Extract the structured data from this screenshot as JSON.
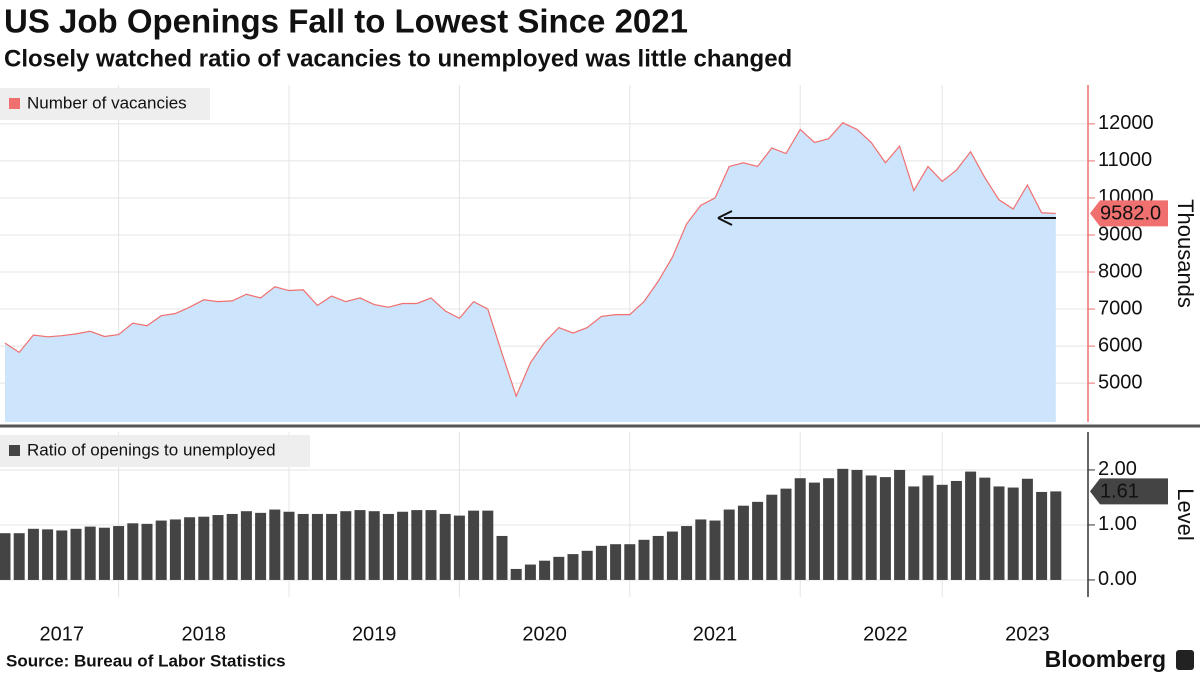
{
  "chart_data": [
    {
      "type": "area",
      "title": "US Job Openings Fall to Lowest Since 2021",
      "subtitle": "Closely watched ratio of vacancies to unemployed was little changed",
      "ylabel": "Thousands",
      "ylim": [
        3950,
        13050
      ],
      "yticks": [
        5000,
        6000,
        7000,
        8000,
        9000,
        10000,
        11000,
        12000
      ],
      "grid": true,
      "series": [
        {
          "name": "Number of vacancies",
          "color": "#f07070",
          "fill": "#cce4fc",
          "values": [
            6080,
            5830,
            6300,
            6250,
            6280,
            6330,
            6400,
            6260,
            6310,
            6620,
            6550,
            6820,
            6880,
            7050,
            7250,
            7200,
            7220,
            7400,
            7300,
            7600,
            7500,
            7520,
            7100,
            7350,
            7200,
            7300,
            7120,
            7050,
            7150,
            7150,
            7300,
            6950,
            6750,
            7200,
            7000,
            5800,
            4650,
            5550,
            6100,
            6500,
            6350,
            6500,
            6800,
            6850,
            6850,
            7200,
            7750,
            8400,
            9300,
            9800,
            10000,
            10850,
            10950,
            10850,
            11350,
            11200,
            11850,
            11500,
            11600,
            12030,
            11850,
            11500,
            10950,
            11400,
            10200,
            10850,
            10450,
            10750,
            11250,
            10550,
            9950,
            9700,
            10350,
            9600,
            9582
          ],
          "value_labels": [
            null,
            null,
            null,
            null,
            null,
            null,
            null,
            null,
            null,
            null,
            null,
            null,
            null,
            null,
            null,
            null,
            null,
            null,
            null,
            null,
            null,
            null,
            null,
            null,
            null,
            null,
            null,
            null,
            null,
            null,
            null,
            null,
            null,
            null,
            null,
            null,
            null,
            null,
            null,
            null,
            null,
            null,
            null,
            null,
            null,
            null,
            null,
            null,
            null,
            null,
            null,
            null,
            null,
            null,
            null,
            null,
            null,
            null,
            null,
            null,
            null,
            null,
            null,
            null,
            null,
            null,
            null,
            null,
            null,
            null,
            null,
            null,
            null,
            null,
            "9582.0"
          ]
        }
      ]
    },
    {
      "type": "bar",
      "ylabel": "Level",
      "ylim": [
        -0.31,
        2.69
      ],
      "yticks": [
        {
          "value": 0,
          "label": "0.00"
        },
        {
          "value": 1,
          "label": "1.00"
        },
        {
          "value": 2,
          "label": "2.00"
        }
      ],
      "grid": true,
      "categories": [
        null,
        null,
        null,
        null,
        "2017",
        null,
        null,
        null,
        null,
        null,
        null,
        null,
        null,
        null,
        "2018",
        null,
        null,
        null,
        null,
        null,
        null,
        null,
        null,
        null,
        null,
        null,
        "2019",
        null,
        null,
        null,
        null,
        null,
        null,
        null,
        null,
        null,
        null,
        null,
        "2020",
        null,
        null,
        null,
        null,
        null,
        null,
        null,
        null,
        null,
        null,
        null,
        "2021",
        null,
        null,
        null,
        null,
        null,
        null,
        null,
        null,
        null,
        null,
        null,
        "2022",
        null,
        null,
        null,
        null,
        null,
        null,
        null,
        null,
        null,
        "2023",
        null,
        null
      ],
      "series": [
        {
          "name": "Ratio of openings to unemployed",
          "color": "#444444",
          "values": [
            0.85,
            0.85,
            0.93,
            0.92,
            0.9,
            0.93,
            0.97,
            0.95,
            0.98,
            1.03,
            1.02,
            1.08,
            1.1,
            1.14,
            1.15,
            1.18,
            1.2,
            1.25,
            1.22,
            1.28,
            1.24,
            1.2,
            1.2,
            1.2,
            1.25,
            1.27,
            1.25,
            1.2,
            1.24,
            1.27,
            1.27,
            1.2,
            1.17,
            1.26,
            1.26,
            0.8,
            0.2,
            0.28,
            0.35,
            0.42,
            0.47,
            0.53,
            0.62,
            0.65,
            0.65,
            0.73,
            0.8,
            0.88,
            0.98,
            1.1,
            1.08,
            1.28,
            1.35,
            1.42,
            1.55,
            1.66,
            1.85,
            1.77,
            1.85,
            2.02,
            2.0,
            1.9,
            1.87,
            2.0,
            1.7,
            1.9,
            1.73,
            1.8,
            1.97,
            1.86,
            1.7,
            1.68,
            1.84,
            1.6,
            1.61
          ]
        }
      ]
    }
  ],
  "source": "Source: Bureau of Labor Statistics",
  "brand": "Bloomberg"
}
